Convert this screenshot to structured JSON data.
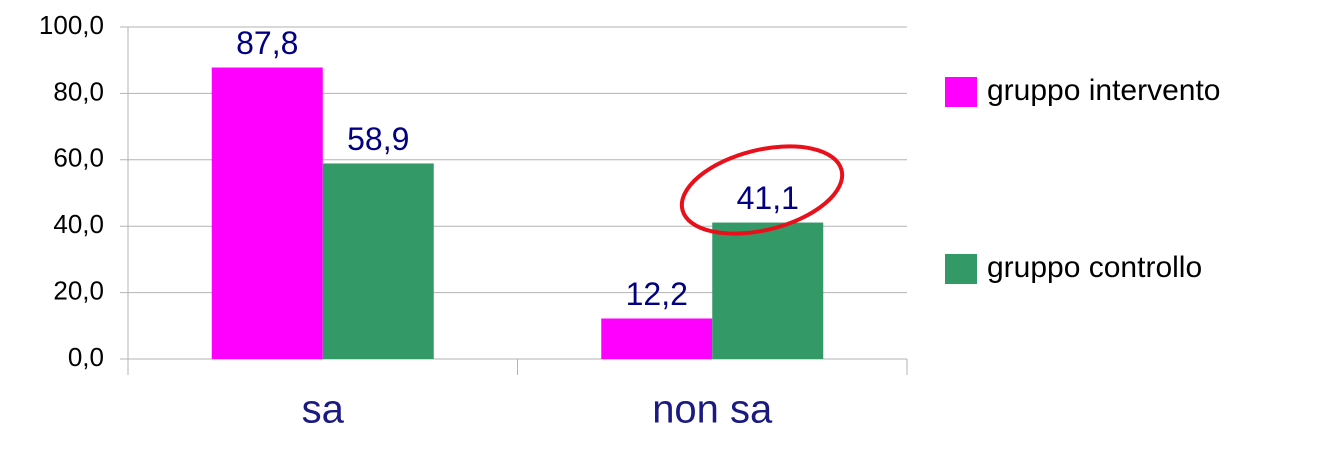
{
  "chart_data": {
    "type": "bar",
    "categories": [
      "sa",
      "non sa"
    ],
    "series": [
      {
        "name": "gruppo intervento",
        "color": "#ff00ff",
        "values": [
          87.8,
          12.2
        ],
        "value_labels": [
          "87,8",
          "12,2"
        ]
      },
      {
        "name": "gruppo controllo",
        "color": "#339966",
        "values": [
          58.9,
          41.1
        ],
        "value_labels": [
          "58,9",
          "41,1"
        ]
      }
    ],
    "ylim": [
      0,
      100
    ],
    "yticks": [
      {
        "value": 0,
        "label": "0,0"
      },
      {
        "value": 20,
        "label": "20,0"
      },
      {
        "value": 40,
        "label": "40,0"
      },
      {
        "value": 60,
        "label": "60,0"
      },
      {
        "value": 80,
        "label": "80,0"
      },
      {
        "value": 100,
        "label": "100,0"
      }
    ],
    "grid": true,
    "legend": "right"
  }
}
